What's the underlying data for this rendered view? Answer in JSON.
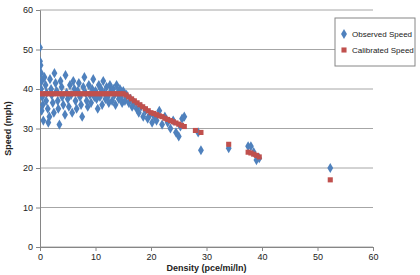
{
  "chart_data": {
    "type": "scatter",
    "x_label": "Density (pce/mi/ln)",
    "y_label": "Speed (mph)",
    "xlim": [
      0,
      60
    ],
    "xticks": [
      0,
      10,
      20,
      30,
      40,
      50,
      60
    ],
    "ylim": [
      0,
      60
    ],
    "yticks": [
      0,
      10,
      20,
      30,
      40,
      50,
      60
    ],
    "grid": "y",
    "legend": "upper right",
    "series": [
      {
        "name": "Observed Speed",
        "color": "#4f81bd",
        "marker": "diamond",
        "x": [
          0,
          0,
          0.1,
          0.2,
          0.3,
          0.2,
          0.4,
          0.5,
          0.3,
          0.6,
          0.8,
          1,
          1.2,
          1.1,
          1.4,
          1.5,
          1.7,
          1.8,
          2,
          2.1,
          2.3,
          2.5,
          2.6,
          2.8,
          3,
          3.2,
          3.3,
          3.5,
          3.7,
          3.9,
          4,
          4.2,
          4.5,
          4.6,
          4.8,
          5,
          5.2,
          5.4,
          5.6,
          5.8,
          6,
          6.2,
          6.4,
          6.6,
          6.8,
          7,
          7.2,
          7.4,
          7.6,
          7.8,
          8,
          8.2,
          8.4,
          8.6,
          8.8,
          9,
          9.2,
          9.4,
          9.6,
          9.8,
          10,
          10.2,
          10.4,
          10.6,
          10.8,
          11,
          11.2,
          11.4,
          11.6,
          11.8,
          12,
          12.2,
          12.4,
          12.6,
          12.8,
          13,
          13.2,
          13.4,
          13.6,
          13.8,
          14,
          14.2,
          14.4,
          14.6,
          14.8,
          15,
          15.3,
          15.6,
          16,
          16.3,
          16.6,
          17,
          17.4,
          17.8,
          18.2,
          18.6,
          19,
          19.4,
          19.8,
          20.2,
          20.6,
          21,
          21.5,
          22,
          22.5,
          23,
          23.5,
          24,
          24.5,
          25,
          25.3,
          25.6,
          26,
          28.5,
          29,
          34,
          37.5,
          38,
          38.5,
          39,
          39.5,
          52.3
        ],
        "values": [
          50.5,
          47,
          46,
          44,
          42,
          40,
          38,
          36,
          34.5,
          32,
          43,
          41,
          39,
          37,
          35,
          31.5,
          33,
          42.5,
          40,
          38.5,
          36.5,
          34,
          44,
          41.5,
          39.5,
          37,
          35,
          31,
          42,
          40.5,
          38,
          36,
          33.5,
          43.5,
          39,
          37.5,
          35.5,
          41,
          38.5,
          34,
          42,
          40,
          37,
          35,
          39.5,
          41.5,
          38,
          36,
          33,
          40.5,
          43,
          39,
          37,
          35.5,
          41,
          38.5,
          36.5,
          40,
          42.5,
          38,
          39.5,
          37.5,
          35,
          41,
          38,
          40,
          36,
          42,
          39,
          37.5,
          40.5,
          38,
          36.5,
          41,
          39.5,
          37,
          40,
          38.5,
          36,
          41,
          39,
          37.5,
          40,
          38,
          36.5,
          39.5,
          37,
          38.5,
          36.5,
          37.5,
          35.5,
          36.5,
          35,
          34,
          35.5,
          33,
          34.5,
          32.5,
          33.5,
          31.5,
          33,
          32,
          34.5,
          31,
          33,
          31.5,
          30,
          32,
          29,
          28,
          30.5,
          32.5,
          33,
          29,
          24.5,
          25,
          25.5,
          25.5,
          24,
          22,
          22.5,
          20
        ]
      },
      {
        "name": "Calibrated Speed",
        "color": "#c0504d",
        "marker": "square",
        "x": [
          0,
          0.5,
          1,
          1.5,
          2,
          2.5,
          3,
          3.5,
          4,
          4.5,
          5,
          5.5,
          6,
          6.5,
          7,
          7.5,
          8,
          8.5,
          9,
          9.5,
          10,
          10.5,
          11,
          11.5,
          12,
          12.5,
          13,
          13.5,
          14,
          14.5,
          15,
          15.5,
          16,
          16.5,
          17,
          17.5,
          18,
          18.5,
          19,
          19.5,
          20,
          20.5,
          21,
          21.5,
          22,
          22.5,
          23,
          23.5,
          24,
          24.5,
          25,
          25.5,
          26,
          28,
          29,
          34,
          37.5,
          38,
          38.5,
          39,
          39.5,
          52.3
        ],
        "values": [
          38.8,
          38.8,
          38.8,
          38.8,
          38.8,
          38.8,
          38.8,
          38.8,
          38.8,
          38.8,
          38.8,
          38.8,
          38.8,
          38.8,
          38.8,
          38.8,
          38.8,
          38.8,
          38.8,
          38.8,
          38.8,
          38.8,
          38.8,
          38.8,
          38.8,
          38.8,
          38.8,
          38.8,
          38.8,
          38.8,
          38.8,
          38.5,
          38,
          37.5,
          37,
          36.5,
          36,
          35.5,
          35,
          34.5,
          34,
          33.8,
          33.5,
          33.2,
          33,
          32.6,
          32.3,
          32,
          31.7,
          31.4,
          31.1,
          30.8,
          30.5,
          29.5,
          29,
          26,
          24,
          23.8,
          23.5,
          23.2,
          22.8,
          17
        ]
      }
    ]
  }
}
